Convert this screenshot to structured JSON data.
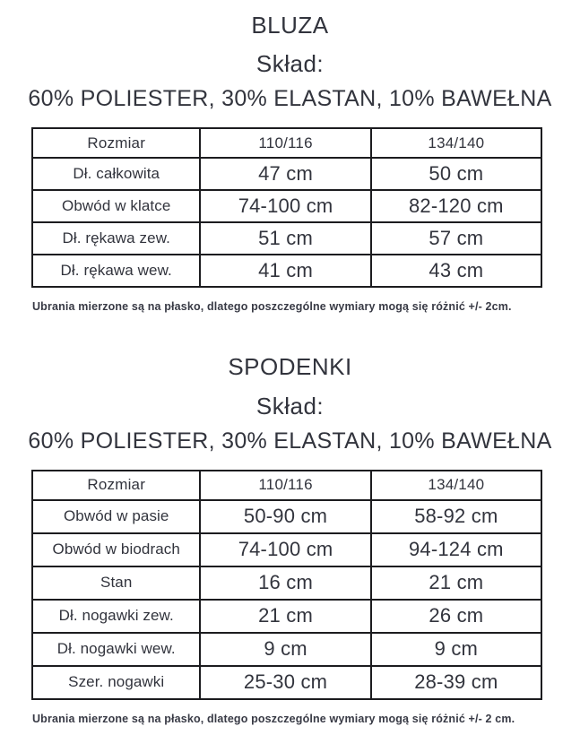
{
  "page": {
    "background": "#ffffff",
    "text_color": "#32343d",
    "table_border_color": "#1c1c1f"
  },
  "sections": [
    {
      "title": "BLUZA",
      "subtitle": "Skład:",
      "composition": "60% POLIESTER, 30% ELASTAN, 10% BAWEŁNA",
      "table": {
        "header": [
          "Rozmiar",
          "110/116",
          "134/140"
        ],
        "rows": [
          [
            "Dł. całkowita",
            "47 cm",
            "50 cm"
          ],
          [
            "Obwód w klatce",
            "74-100 cm",
            "82-120 cm"
          ],
          [
            "Dł. rękawa zew.",
            "51 cm",
            "57 cm"
          ],
          [
            "Dł. rękawa wew.",
            "41 cm",
            "43 cm"
          ]
        ]
      },
      "note": "Ubrania mierzone są na płasko, dlatego poszczególne wymiary mogą się różnić +/- 2cm."
    },
    {
      "title": "SPODENKI",
      "subtitle": "Skład:",
      "composition": "60% POLIESTER, 30% ELASTAN, 10% BAWEŁNA",
      "table": {
        "header": [
          "Rozmiar",
          "110/116",
          "134/140"
        ],
        "rows": [
          [
            "Obwód w pasie",
            "50-90 cm",
            "58-92 cm"
          ],
          [
            "Obwód w biodrach",
            "74-100 cm",
            "94-124 cm"
          ],
          [
            "Stan",
            "16 cm",
            "21 cm"
          ],
          [
            "Dł. nogawki zew.",
            "21 cm",
            "26 cm"
          ],
          [
            "Dł. nogawki wew.",
            "9 cm",
            "9 cm"
          ],
          [
            "Szer. nogawki",
            "25-30 cm",
            "28-39 cm"
          ]
        ]
      },
      "note": "Ubrania mierzone są na płasko, dlatego poszczególne wymiary mogą się różnić +/- 2 cm."
    }
  ]
}
